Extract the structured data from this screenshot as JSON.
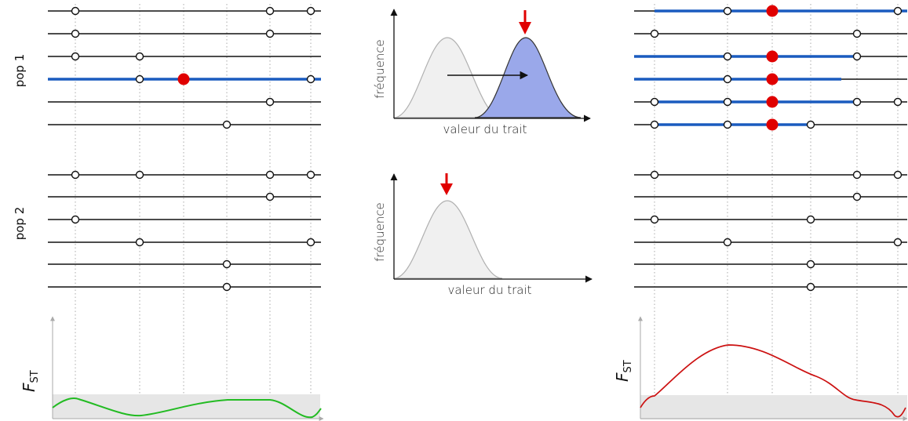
{
  "labels": {
    "pop1": "pop 1",
    "pop2": "pop 2",
    "frequency": "fréquence",
    "trait_value": "valeur du trait",
    "fst_main": "F",
    "fst_sub": "ST"
  },
  "colors": {
    "selected_haplotype": "#1a5bbf",
    "derived_allele": "#e00000",
    "neutral_fst_curve": "#22bb22",
    "sweep_fst_curve": "#cc1111",
    "shifted_distribution": "#9aa8ea",
    "baseline_distribution": "#f0f0f0",
    "shift_arrow": "#e00000"
  },
  "left_panel": {
    "pop1_haplotypes": [
      {
        "selected": false,
        "neutral_sites": [
          0,
          3,
          4
        ],
        "derived": false
      },
      {
        "selected": false,
        "neutral_sites": [
          0,
          3
        ],
        "derived": false
      },
      {
        "selected": false,
        "neutral_sites": [
          0,
          1
        ],
        "derived": false
      },
      {
        "selected": true,
        "neutral_sites": [
          1,
          4
        ],
        "derived": true
      },
      {
        "selected": false,
        "neutral_sites": [
          3
        ],
        "derived": false
      },
      {
        "selected": false,
        "neutral_sites": [
          2
        ],
        "derived": false
      }
    ],
    "pop2_haplotypes": [
      {
        "selected": false,
        "neutral_sites": [
          0,
          1,
          3,
          4
        ],
        "derived": false
      },
      {
        "selected": false,
        "neutral_sites": [
          3
        ],
        "derived": false
      },
      {
        "selected": false,
        "neutral_sites": [
          0
        ],
        "derived": false
      },
      {
        "selected": false,
        "neutral_sites": [
          1,
          4
        ],
        "derived": false
      },
      {
        "selected": false,
        "neutral_sites": [
          2
        ],
        "derived": false
      },
      {
        "selected": false,
        "neutral_sites": [
          2
        ],
        "derived": false
      }
    ]
  },
  "right_panel": {
    "pop1_haplotypes": [
      {
        "selected": true,
        "neutral_sites": [
          1,
          4
        ],
        "derived": true
      },
      {
        "selected": false,
        "neutral_sites": [
          0,
          3
        ],
        "derived": false
      },
      {
        "selected": true,
        "neutral_sites": [
          1,
          3
        ],
        "derived": true
      },
      {
        "selected": true,
        "neutral_sites": [
          1
        ],
        "derived": true
      },
      {
        "selected": true,
        "neutral_sites": [
          0,
          1,
          3,
          4
        ],
        "derived": true
      },
      {
        "selected": true,
        "neutral_sites": [
          0,
          1,
          2
        ],
        "derived": true
      }
    ],
    "pop2_haplotypes": [
      {
        "selected": false,
        "neutral_sites": [
          0,
          3,
          4
        ],
        "derived": false
      },
      {
        "selected": false,
        "neutral_sites": [
          3
        ],
        "derived": false
      },
      {
        "selected": false,
        "neutral_sites": [
          0,
          2
        ],
        "derived": false
      },
      {
        "selected": false,
        "neutral_sites": [
          1,
          4
        ],
        "derived": false
      },
      {
        "selected": false,
        "neutral_sites": [
          2
        ],
        "derived": false
      },
      {
        "selected": false,
        "neutral_sites": [
          2
        ],
        "derived": false
      }
    ]
  }
}
